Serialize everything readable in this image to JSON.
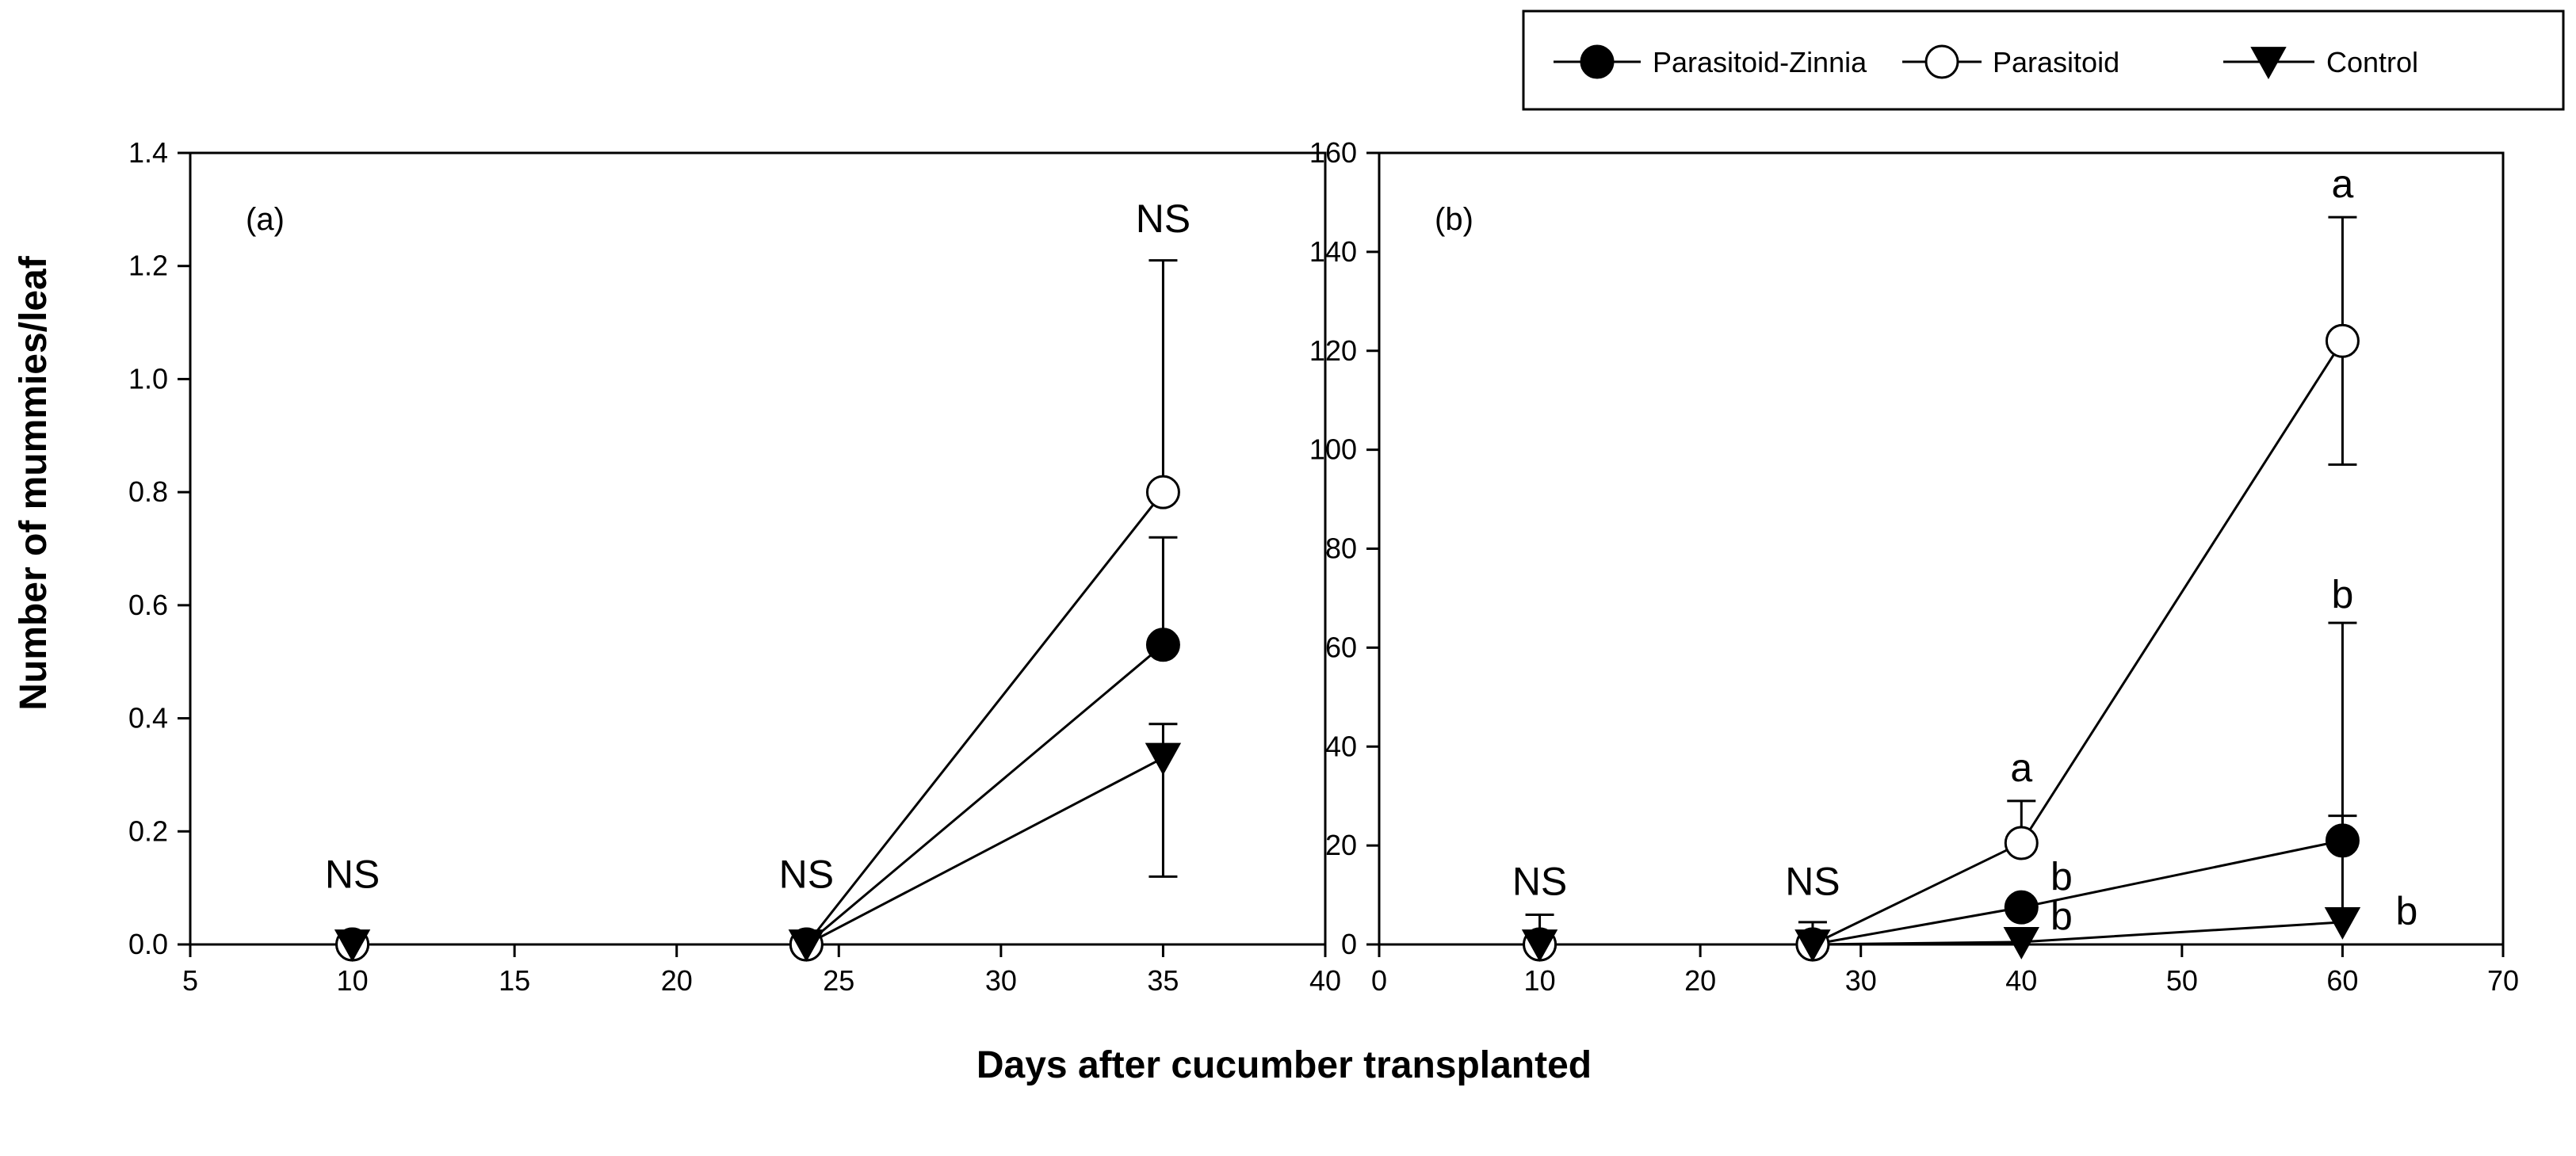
{
  "ylabel": "Number of mummies/leaf",
  "xlabel": "Days after cucumber transplanted",
  "legend": {
    "position": "top-right",
    "entries": [
      {
        "name": "Parasitoid-Zinnia",
        "marker": "filled-circle"
      },
      {
        "name": "Parasitoid",
        "marker": "open-circle"
      },
      {
        "name": "Control",
        "marker": "filled-triangle-down"
      }
    ]
  },
  "chart_data": [
    {
      "type": "line",
      "panel_label": "(a)",
      "xlim": [
        5,
        40
      ],
      "ylim": [
        0,
        1.4
      ],
      "x_ticks": [
        5,
        10,
        15,
        20,
        25,
        30,
        35,
        40
      ],
      "y_ticks": [
        0.0,
        0.2,
        0.4,
        0.6,
        0.8,
        1.0,
        1.2,
        1.4
      ],
      "y_tick_labels": [
        "0.0",
        "0.2",
        "0.4",
        "0.6",
        "0.8",
        "1.0",
        "1.2",
        "1.4"
      ],
      "series": [
        {
          "name": "Parasitoid-Zinnia",
          "x": [
            10,
            24,
            35
          ],
          "y": [
            0,
            0,
            0.53
          ],
          "err_up": [
            0,
            0,
            0.19
          ],
          "err_down": [
            0,
            0,
            0
          ]
        },
        {
          "name": "Parasitoid",
          "x": [
            10,
            24,
            35
          ],
          "y": [
            0,
            0,
            0.8
          ],
          "err_up": [
            0,
            0,
            0.41
          ],
          "err_down": [
            0,
            0,
            0
          ]
        },
        {
          "name": "Control",
          "x": [
            10,
            24,
            35
          ],
          "y": [
            0,
            0,
            0.33
          ],
          "err_up": [
            0,
            0,
            0.06
          ],
          "err_down": [
            0,
            0,
            0.21
          ]
        }
      ],
      "annotations": [
        {
          "text": "NS",
          "x": 10,
          "y": 0.1
        },
        {
          "text": "NS",
          "x": 24,
          "y": 0.1
        },
        {
          "text": "NS",
          "x": 35,
          "y": 1.26
        }
      ]
    },
    {
      "type": "line",
      "panel_label": "(b)",
      "xlim": [
        0,
        70
      ],
      "ylim": [
        0,
        160
      ],
      "x_ticks": [
        0,
        10,
        20,
        30,
        40,
        50,
        60,
        70
      ],
      "y_ticks": [
        0,
        20,
        40,
        60,
        80,
        100,
        120,
        140,
        160
      ],
      "y_tick_labels": [
        "0",
        "20",
        "40",
        "60",
        "80",
        "100",
        "120",
        "140",
        "160"
      ],
      "series": [
        {
          "name": "Parasitoid-Zinnia",
          "x": [
            10,
            27,
            40,
            60
          ],
          "y": [
            0,
            0,
            7.5,
            21
          ],
          "err_up": [
            0,
            0,
            0,
            44
          ],
          "err_down": [
            0,
            0,
            0,
            0
          ]
        },
        {
          "name": "Parasitoid",
          "x": [
            10,
            27,
            40,
            60
          ],
          "y": [
            0,
            0,
            20.5,
            122
          ],
          "err_up": [
            6,
            4.5,
            8.5,
            25
          ],
          "err_down": [
            0,
            0,
            0,
            25
          ]
        },
        {
          "name": "Control",
          "x": [
            10,
            27,
            40,
            60
          ],
          "y": [
            0,
            0,
            0.5,
            4.5
          ],
          "err_up": [
            0,
            0,
            0,
            21.5
          ],
          "err_down": [
            0,
            0,
            0,
            0
          ]
        }
      ],
      "annotations": [
        {
          "text": "NS",
          "x": 10,
          "y": 10
        },
        {
          "text": "NS",
          "x": 27,
          "y": 10
        },
        {
          "text": "a",
          "x": 40,
          "y": 33
        },
        {
          "text": "b",
          "x": 42.5,
          "y": 11
        },
        {
          "text": "b",
          "x": 42.5,
          "y": 3
        },
        {
          "text": "a",
          "x": 60,
          "y": 151
        },
        {
          "text": "b",
          "x": 60,
          "y": 68
        },
        {
          "text": "b",
          "x": 64,
          "y": 4
        }
      ]
    }
  ]
}
